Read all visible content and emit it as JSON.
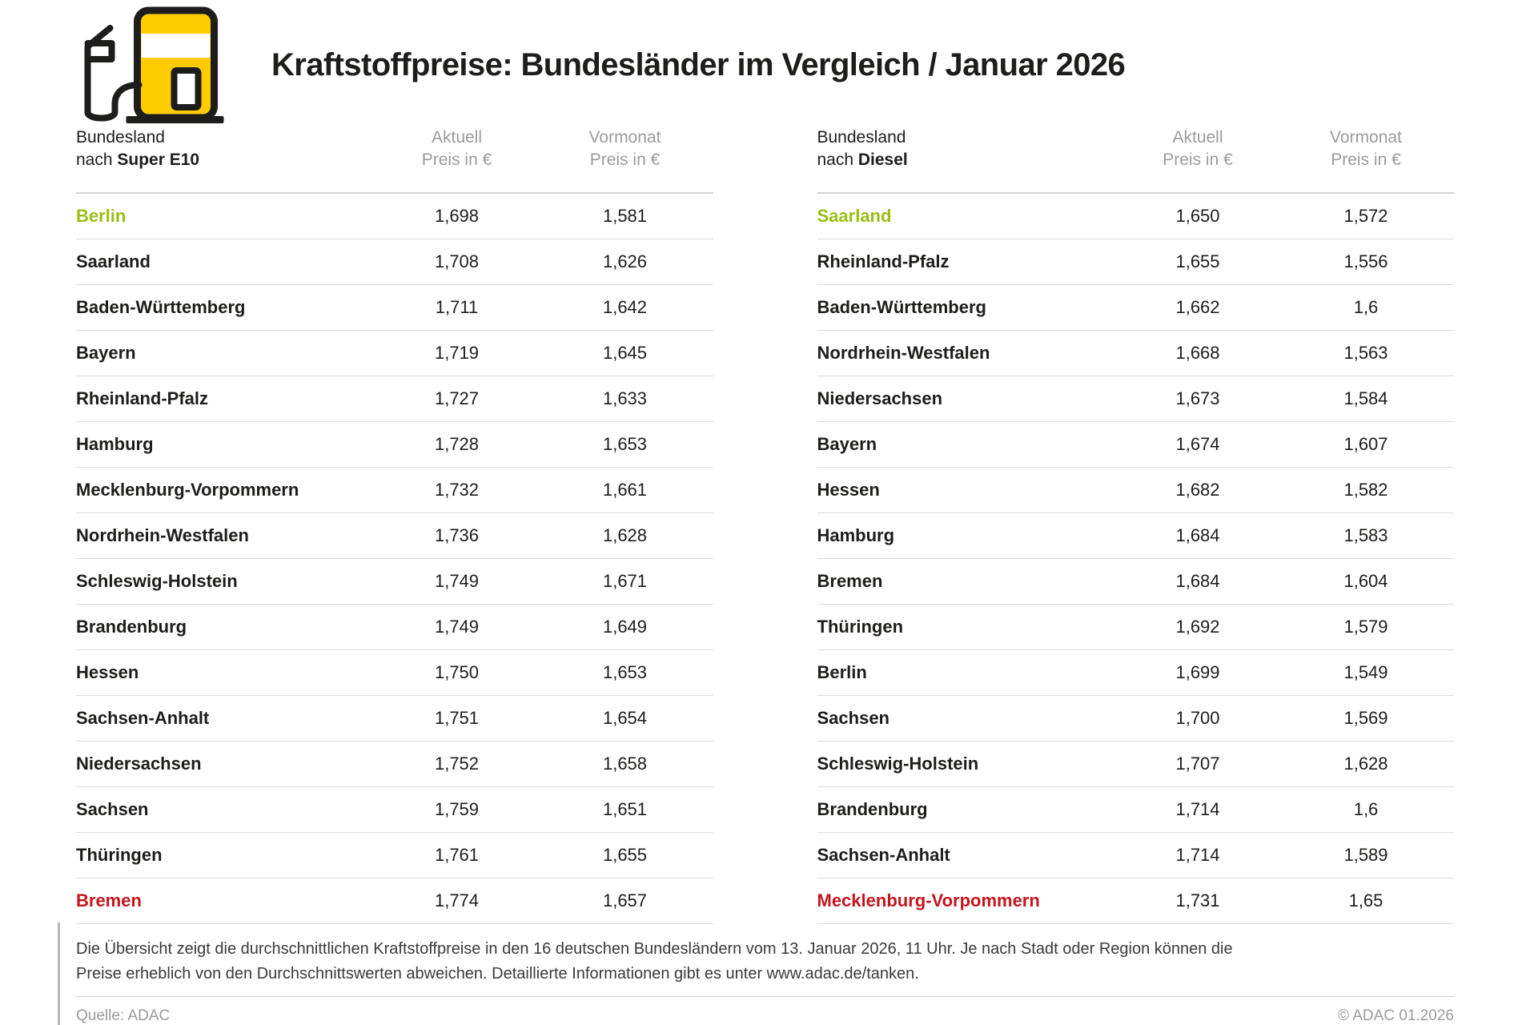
{
  "header": {
    "title": "Kraftstoffpreise: Bundesländer im Vergleich / Januar 2026",
    "icon": "fuel-pump-icon"
  },
  "columns": {
    "aktuell": "Aktuell",
    "vormonat": "Vormonat",
    "price_unit": "Preis in €"
  },
  "tables": [
    {
      "id": "super-e10",
      "header": {
        "line1": "Bundesland",
        "prefix": "nach ",
        "fuel": "Super E10"
      },
      "rows": [
        {
          "land": "Berlin",
          "aktuell": "1,698",
          "vormonat": "1,581",
          "highlight": "green"
        },
        {
          "land": "Saarland",
          "aktuell": "1,708",
          "vormonat": "1,626",
          "highlight": ""
        },
        {
          "land": "Baden-Württemberg",
          "aktuell": "1,711",
          "vormonat": "1,642",
          "highlight": ""
        },
        {
          "land": "Bayern",
          "aktuell": "1,719",
          "vormonat": "1,645",
          "highlight": ""
        },
        {
          "land": "Rheinland-Pfalz",
          "aktuell": "1,727",
          "vormonat": "1,633",
          "highlight": ""
        },
        {
          "land": "Hamburg",
          "aktuell": "1,728",
          "vormonat": "1,653",
          "highlight": ""
        },
        {
          "land": "Mecklenburg-Vorpommern",
          "aktuell": "1,732",
          "vormonat": "1,661",
          "highlight": ""
        },
        {
          "land": "Nordrhein-Westfalen",
          "aktuell": "1,736",
          "vormonat": "1,628",
          "highlight": ""
        },
        {
          "land": "Schleswig-Holstein",
          "aktuell": "1,749",
          "vormonat": "1,671",
          "highlight": ""
        },
        {
          "land": "Brandenburg",
          "aktuell": "1,749",
          "vormonat": "1,649",
          "highlight": ""
        },
        {
          "land": "Hessen",
          "aktuell": "1,750",
          "vormonat": "1,653",
          "highlight": ""
        },
        {
          "land": "Sachsen-Anhalt",
          "aktuell": "1,751",
          "vormonat": "1,654",
          "highlight": ""
        },
        {
          "land": "Niedersachsen",
          "aktuell": "1,752",
          "vormonat": "1,658",
          "highlight": ""
        },
        {
          "land": "Sachsen",
          "aktuell": "1,759",
          "vormonat": "1,651",
          "highlight": ""
        },
        {
          "land": "Thüringen",
          "aktuell": "1,761",
          "vormonat": "1,655",
          "highlight": ""
        },
        {
          "land": "Bremen",
          "aktuell": "1,774",
          "vormonat": "1,657",
          "highlight": "red"
        }
      ]
    },
    {
      "id": "diesel",
      "header": {
        "line1": "Bundesland",
        "prefix": "nach ",
        "fuel": "Diesel"
      },
      "rows": [
        {
          "land": "Saarland",
          "aktuell": "1,650",
          "vormonat": "1,572",
          "highlight": "green"
        },
        {
          "land": "Rheinland-Pfalz",
          "aktuell": "1,655",
          "vormonat": "1,556",
          "highlight": ""
        },
        {
          "land": "Baden-Württemberg",
          "aktuell": "1,662",
          "vormonat": "1,6",
          "highlight": ""
        },
        {
          "land": "Nordrhein-Westfalen",
          "aktuell": "1,668",
          "vormonat": "1,563",
          "highlight": ""
        },
        {
          "land": "Niedersachsen",
          "aktuell": "1,673",
          "vormonat": "1,584",
          "highlight": ""
        },
        {
          "land": "Bayern",
          "aktuell": "1,674",
          "vormonat": "1,607",
          "highlight": ""
        },
        {
          "land": "Hessen",
          "aktuell": "1,682",
          "vormonat": "1,582",
          "highlight": ""
        },
        {
          "land": "Hamburg",
          "aktuell": "1,684",
          "vormonat": "1,583",
          "highlight": ""
        },
        {
          "land": "Bremen",
          "aktuell": "1,684",
          "vormonat": "1,604",
          "highlight": ""
        },
        {
          "land": "Thüringen",
          "aktuell": "1,692",
          "vormonat": "1,579",
          "highlight": ""
        },
        {
          "land": "Berlin",
          "aktuell": "1,699",
          "vormonat": "1,549",
          "highlight": ""
        },
        {
          "land": "Sachsen",
          "aktuell": "1,700",
          "vormonat": "1,569",
          "highlight": ""
        },
        {
          "land": "Schleswig-Holstein",
          "aktuell": "1,707",
          "vormonat": "1,628",
          "highlight": ""
        },
        {
          "land": "Brandenburg",
          "aktuell": "1,714",
          "vormonat": "1,6",
          "highlight": ""
        },
        {
          "land": "Sachsen-Anhalt",
          "aktuell": "1,714",
          "vormonat": "1,589",
          "highlight": ""
        },
        {
          "land": "Mecklenburg-Vorpommern",
          "aktuell": "1,731",
          "vormonat": "1,65",
          "highlight": "red"
        }
      ]
    }
  ],
  "footnote": {
    "line1": "Die Übersicht zeigt die durchschnittlichen Kraftstoffpreise in den 16 deutschen Bundesländern vom 13. Januar 2026, 11 Uhr. Je nach Stadt oder Region können die",
    "line2": "Preise erheblich von den Durchschnittswerten abweichen. Detaillierte Informationen gibt es unter www.adac.de/tanken."
  },
  "footer": {
    "source": "Quelle: ADAC",
    "copyright": "© ADAC 01.2026"
  },
  "colors": {
    "brand_yellow": "#ffcc00",
    "cheapest_green": "#9abe16",
    "most_expensive_red": "#c4161c",
    "header_gray": "#9b9b9b",
    "divider_gray": "#dcdcdc"
  },
  "chart_data": [
    {
      "type": "table",
      "title": "Bundesland nach Super E10",
      "columns": [
        "Bundesland",
        "Aktuell Preis in €",
        "Vormonat Preis in €"
      ],
      "rows": [
        [
          "Berlin",
          "1,698",
          "1,581"
        ],
        [
          "Saarland",
          "1,708",
          "1,626"
        ],
        [
          "Baden-Württemberg",
          "1,711",
          "1,642"
        ],
        [
          "Bayern",
          "1,719",
          "1,645"
        ],
        [
          "Rheinland-Pfalz",
          "1,727",
          "1,633"
        ],
        [
          "Hamburg",
          "1,728",
          "1,653"
        ],
        [
          "Mecklenburg-Vorpommern",
          "1,732",
          "1,661"
        ],
        [
          "Nordrhein-Westfalen",
          "1,736",
          "1,628"
        ],
        [
          "Schleswig-Holstein",
          "1,749",
          "1,671"
        ],
        [
          "Brandenburg",
          "1,749",
          "1,649"
        ],
        [
          "Hessen",
          "1,750",
          "1,653"
        ],
        [
          "Sachsen-Anhalt",
          "1,751",
          "1,654"
        ],
        [
          "Niedersachsen",
          "1,752",
          "1,658"
        ],
        [
          "Sachsen",
          "1,759",
          "1,651"
        ],
        [
          "Thüringen",
          "1,761",
          "1,655"
        ],
        [
          "Bremen",
          "1,774",
          "1,657"
        ]
      ]
    },
    {
      "type": "table",
      "title": "Bundesland nach Diesel",
      "columns": [
        "Bundesland",
        "Aktuell Preis in €",
        "Vormonat Preis in €"
      ],
      "rows": [
        [
          "Saarland",
          "1,650",
          "1,572"
        ],
        [
          "Rheinland-Pfalz",
          "1,655",
          "1,556"
        ],
        [
          "Baden-Württemberg",
          "1,662",
          "1,6"
        ],
        [
          "Nordrhein-Westfalen",
          "1,668",
          "1,563"
        ],
        [
          "Niedersachsen",
          "1,673",
          "1,584"
        ],
        [
          "Bayern",
          "1,674",
          "1,607"
        ],
        [
          "Hessen",
          "1,682",
          "1,582"
        ],
        [
          "Hamburg",
          "1,684",
          "1,583"
        ],
        [
          "Bremen",
          "1,684",
          "1,604"
        ],
        [
          "Thüringen",
          "1,692",
          "1,579"
        ],
        [
          "Berlin",
          "1,699",
          "1,549"
        ],
        [
          "Sachsen",
          "1,700",
          "1,569"
        ],
        [
          "Schleswig-Holstein",
          "1,707",
          "1,628"
        ],
        [
          "Brandenburg",
          "1,714",
          "1,6"
        ],
        [
          "Sachsen-Anhalt",
          "1,714",
          "1,589"
        ],
        [
          "Mecklenburg-Vorpommern",
          "1,731",
          "1,65"
        ]
      ]
    }
  ]
}
